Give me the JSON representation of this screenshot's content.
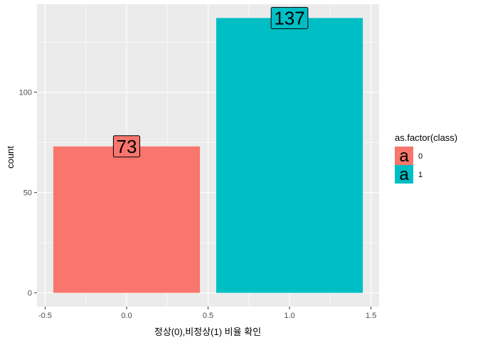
{
  "chart_data": {
    "type": "bar",
    "xlabel": "정상(0),비정상(1) 비율 확인",
    "ylabel": "count",
    "xlim": [
      -0.5,
      1.5
    ],
    "ylim": [
      0,
      137
    ],
    "x_ticks": [
      -0.5,
      0.0,
      0.5,
      1.0,
      1.5
    ],
    "x_tick_labels": [
      "-0.5",
      "0.0",
      "0.5",
      "1.0",
      "1.5"
    ],
    "y_ticks": [
      0,
      50,
      100
    ],
    "y_tick_labels": [
      "0",
      "50",
      "100"
    ],
    "grid": true,
    "bars": [
      {
        "category": "0",
        "x": 0,
        "value": 73,
        "label": "73",
        "color": "#F8766D"
      },
      {
        "category": "1",
        "x": 1,
        "value": 137,
        "label": "137",
        "color": "#00BFC4"
      }
    ],
    "legend": {
      "title": "as.factor(class)",
      "placement": "right",
      "key_glyph": "a",
      "items": [
        {
          "label": "0",
          "color": "#F8766D"
        },
        {
          "label": "1",
          "color": "#00BFC4"
        }
      ]
    },
    "colors": {
      "panel_background": "#EBEBEB",
      "grid_major": "#FFFFFF",
      "tick_text": "#4D4D4D"
    }
  }
}
